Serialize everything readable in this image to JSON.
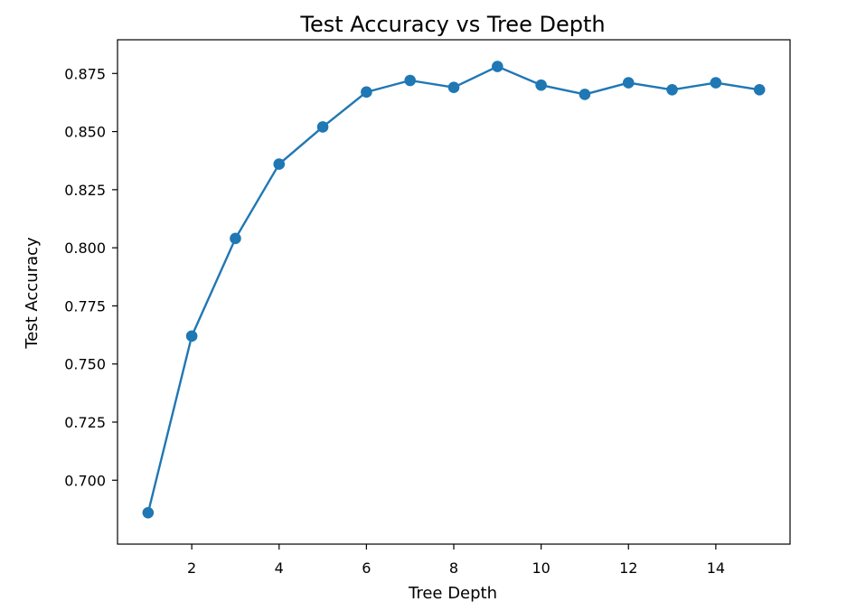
{
  "chart_data": {
    "type": "line",
    "title": "Test Accuracy vs Tree Depth",
    "xlabel": "Tree Depth",
    "ylabel": "Test Accuracy",
    "xlim": [
      0.3,
      15.7
    ],
    "ylim": [
      0.6725,
      0.8895
    ],
    "xticks": [
      2,
      4,
      6,
      8,
      10,
      12,
      14
    ],
    "xtick_labels": [
      "2",
      "4",
      "6",
      "8",
      "10",
      "12",
      "14"
    ],
    "yticks": [
      0.7,
      0.725,
      0.75,
      0.775,
      0.8,
      0.825,
      0.85,
      0.875
    ],
    "ytick_labels": [
      "0.700",
      "0.725",
      "0.750",
      "0.775",
      "0.800",
      "0.825",
      "0.850",
      "0.875"
    ],
    "grid": false,
    "series": [
      {
        "name": "Test Accuracy",
        "color": "#1f77b4",
        "marker": "circle",
        "x": [
          1,
          2,
          3,
          4,
          5,
          6,
          7,
          8,
          9,
          10,
          11,
          12,
          13,
          14,
          15
        ],
        "y": [
          0.686,
          0.762,
          0.804,
          0.836,
          0.852,
          0.867,
          0.872,
          0.869,
          0.878,
          0.87,
          0.866,
          0.871,
          0.868,
          0.871,
          0.868
        ]
      }
    ]
  }
}
